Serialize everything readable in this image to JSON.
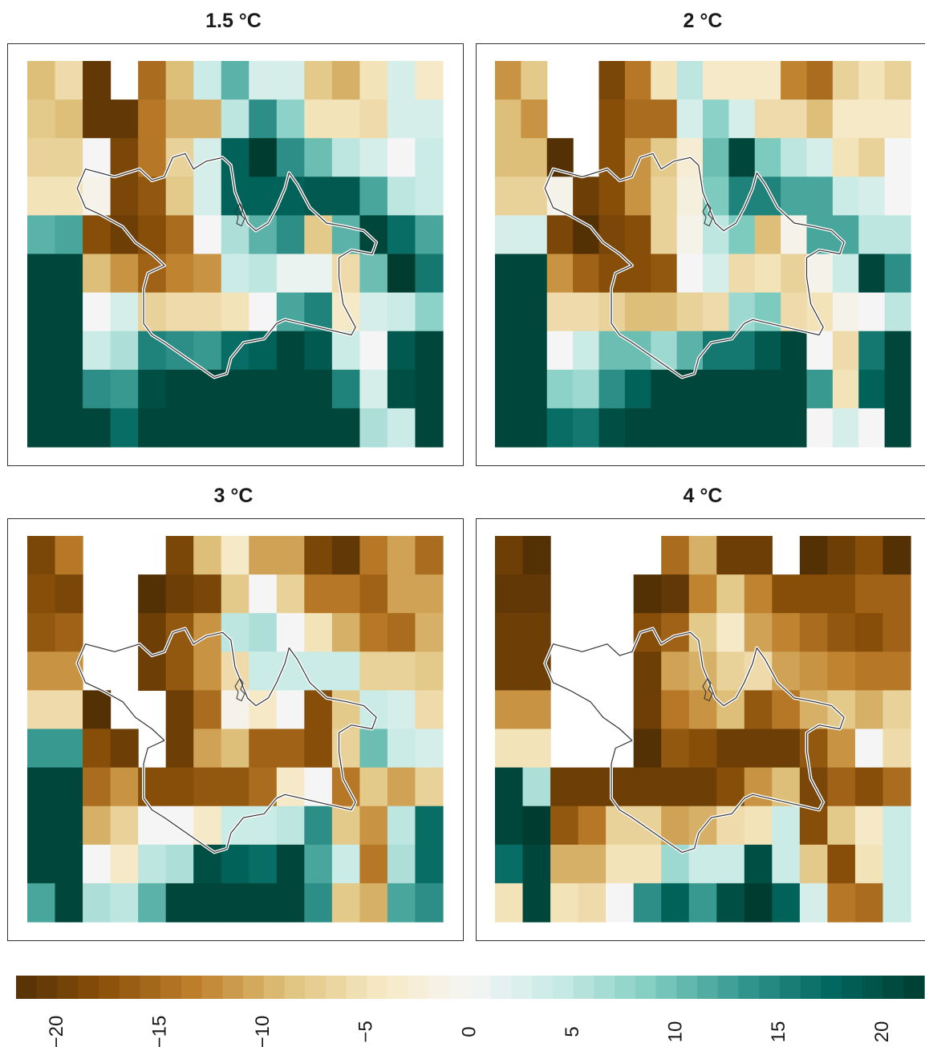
{
  "chart_data": {
    "type": "heatmap",
    "panels": [
      {
        "title": "1.5 °C",
        "grid": [
          [
            -9,
            -6,
            -21,
            null,
            -15,
            -9,
            4,
            11,
            3,
            3,
            -8,
            -10,
            -5,
            3,
            -4
          ],
          [
            -8,
            -9,
            -21,
            -21,
            -14,
            -10,
            -10,
            5,
            14,
            8,
            -5,
            -5,
            -6,
            3,
            3
          ],
          [
            -7,
            -7,
            0,
            -19,
            -14,
            -7,
            3,
            18,
            22,
            14,
            10,
            5,
            3,
            0,
            4
          ],
          [
            -5,
            -5,
            -1,
            -19,
            -17,
            -8,
            3,
            18,
            18,
            18,
            19,
            19,
            12,
            5,
            4
          ],
          [
            11,
            12,
            -18,
            -20,
            -18,
            -15,
            0,
            6,
            11,
            14,
            -8,
            11,
            21,
            17,
            12
          ],
          [
            21,
            21,
            -9,
            -12,
            -16,
            -13,
            -12,
            4,
            5,
            1,
            1,
            -6,
            10,
            22,
            16
          ],
          [
            21,
            21,
            0,
            3,
            -7,
            -6,
            -6,
            -5,
            0,
            12,
            15,
            -4,
            3,
            4,
            8
          ],
          [
            21,
            21,
            4,
            6,
            15,
            14,
            13,
            17,
            18,
            21,
            19,
            4,
            0,
            19,
            21
          ],
          [
            21,
            21,
            14,
            13,
            20,
            21,
            21,
            21,
            21,
            21,
            21,
            15,
            3,
            20,
            21
          ],
          [
            21,
            21,
            21,
            17,
            21,
            21,
            21,
            21,
            21,
            21,
            21,
            21,
            6,
            4,
            21
          ]
        ]
      },
      {
        "title": "2 °C",
        "grid": [
          [
            -12,
            -8,
            null,
            null,
            -19,
            -14,
            -5,
            5,
            -4,
            -4,
            -4,
            -13,
            -15,
            -7,
            -5,
            -7
          ],
          [
            -9,
            -12,
            null,
            null,
            -18,
            -15,
            -15,
            3,
            8,
            3,
            -6,
            -6,
            -9,
            -4,
            -4,
            -4
          ],
          [
            -9,
            -9,
            -22,
            null,
            -18,
            -12,
            -8,
            -3,
            10,
            21,
            9,
            5,
            3,
            -5,
            -7,
            0
          ],
          [
            -7,
            -7,
            -1,
            -20,
            -18,
            -12,
            -7,
            -2,
            9,
            15,
            15,
            12,
            12,
            4,
            3,
            0
          ],
          [
            3,
            3,
            -19,
            -22,
            -19,
            -18,
            -7,
            -1,
            5,
            9,
            -9,
            -1,
            12,
            12,
            5,
            5
          ],
          [
            21,
            21,
            -12,
            -16,
            -18,
            -18,
            -17,
            0,
            3,
            -6,
            -5,
            -7,
            -1,
            4,
            21,
            14
          ],
          [
            21,
            21,
            -6,
            -6,
            -7,
            -9,
            -9,
            -7,
            -6,
            7,
            9,
            -6,
            -5,
            -1,
            0,
            5
          ],
          [
            21,
            21,
            0,
            4,
            10,
            10,
            7,
            11,
            16,
            16,
            19,
            21,
            0,
            -6,
            16,
            21
          ],
          [
            21,
            21,
            8,
            7,
            14,
            18,
            21,
            21,
            21,
            21,
            21,
            21,
            13,
            -5,
            18,
            21
          ],
          [
            21,
            21,
            17,
            16,
            20,
            21,
            21,
            21,
            21,
            21,
            21,
            21,
            0,
            3,
            0,
            21
          ]
        ]
      },
      {
        "title": "3 °C",
        "grid": [
          [
            -19,
            -14,
            null,
            null,
            null,
            -19,
            -9,
            -4,
            -11,
            -11,
            -19,
            -21,
            -14,
            -11,
            -15
          ],
          [
            -18,
            -19,
            null,
            null,
            -22,
            -20,
            -19,
            -8,
            0,
            -7,
            -14,
            -14,
            -16,
            -11,
            -11
          ],
          [
            -17,
            -16,
            null,
            null,
            -20,
            -17,
            -12,
            5,
            6,
            0,
            -5,
            -10,
            -14,
            -15,
            -10
          ],
          [
            -12,
            -12,
            null,
            null,
            -20,
            -17,
            -12,
            -6,
            4,
            4,
            4,
            4,
            -7,
            -7,
            -8
          ],
          [
            -6,
            -6,
            -23,
            null,
            null,
            -20,
            -15,
            -1,
            -4,
            0,
            -18,
            -8,
            4,
            3,
            -6
          ],
          [
            13,
            13,
            -18,
            -20,
            null,
            -20,
            -11,
            -9,
            -16,
            -16,
            -18,
            -7,
            10,
            4,
            3
          ],
          [
            21,
            21,
            -15,
            -12,
            -18,
            -18,
            -17,
            -17,
            -15,
            -4,
            0,
            -14,
            -8,
            -11,
            -7
          ],
          [
            21,
            21,
            -10,
            -7,
            0,
            0,
            -4,
            4,
            4,
            5,
            14,
            -8,
            -12,
            5,
            17
          ],
          [
            21,
            21,
            0,
            -4,
            5,
            6,
            20,
            18,
            17,
            21,
            12,
            4,
            -14,
            6,
            17
          ],
          [
            12,
            21,
            6,
            5,
            11,
            21,
            21,
            21,
            21,
            21,
            14,
            -8,
            -10,
            12,
            14
          ]
        ]
      },
      {
        "title": "4 °C",
        "grid": [
          [
            -20,
            -22,
            null,
            null,
            null,
            null,
            -15,
            -10,
            -20,
            -20,
            null,
            -23,
            -20,
            -18,
            -22
          ],
          [
            -21,
            -21,
            null,
            null,
            null,
            -23,
            -21,
            -13,
            -8,
            -13,
            -18,
            -18,
            -18,
            -16,
            -16
          ],
          [
            -20,
            -20,
            null,
            null,
            null,
            -18,
            -16,
            -8,
            -4,
            -11,
            -13,
            -15,
            -17,
            -18,
            -16
          ],
          [
            -20,
            -20,
            null,
            null,
            null,
            -20,
            -11,
            -10,
            -7,
            -6,
            -11,
            -12,
            -13,
            -14,
            -14
          ],
          [
            -12,
            -12,
            null,
            null,
            null,
            -20,
            -14,
            -12,
            -9,
            -17,
            -14,
            -10,
            -8,
            -10,
            -7
          ],
          [
            -5,
            -5,
            null,
            null,
            null,
            -23,
            -17,
            -18,
            -20,
            -20,
            -20,
            -17,
            -12,
            0,
            -6
          ],
          [
            21,
            6,
            -20,
            -20,
            -20,
            -20,
            -20,
            -20,
            -18,
            -12,
            -9,
            -19,
            -16,
            -18,
            -15
          ],
          [
            21,
            22,
            -17,
            -14,
            -7,
            -7,
            -11,
            -10,
            -6,
            -5,
            4,
            -18,
            -8,
            -4,
            4
          ],
          [
            17,
            21,
            -10,
            -10,
            -5,
            -5,
            7,
            4,
            4,
            20,
            4,
            -8,
            -18,
            -5,
            4
          ],
          [
            -5,
            21,
            -5,
            -6,
            0,
            14,
            18,
            13,
            20,
            22,
            18,
            3,
            -14,
            -15,
            4
          ]
        ]
      }
    ],
    "colorbar": {
      "ticks": [
        -20,
        -15,
        -10,
        -5,
        0,
        5,
        10,
        15,
        20
      ],
      "tick_labels": [
        "−20",
        "−15",
        "−10",
        "−5",
        "0",
        "5",
        "10",
        "15",
        "20"
      ],
      "range": [
        -22,
        22
      ],
      "colors_low_to_high": [
        "#543005",
        "#8c510a",
        "#bf812d",
        "#dfc27d",
        "#f6e8c3",
        "#f5f5f5",
        "#c7eae5",
        "#80cdc1",
        "#35978f",
        "#01665e",
        "#003c30"
      ]
    }
  }
}
